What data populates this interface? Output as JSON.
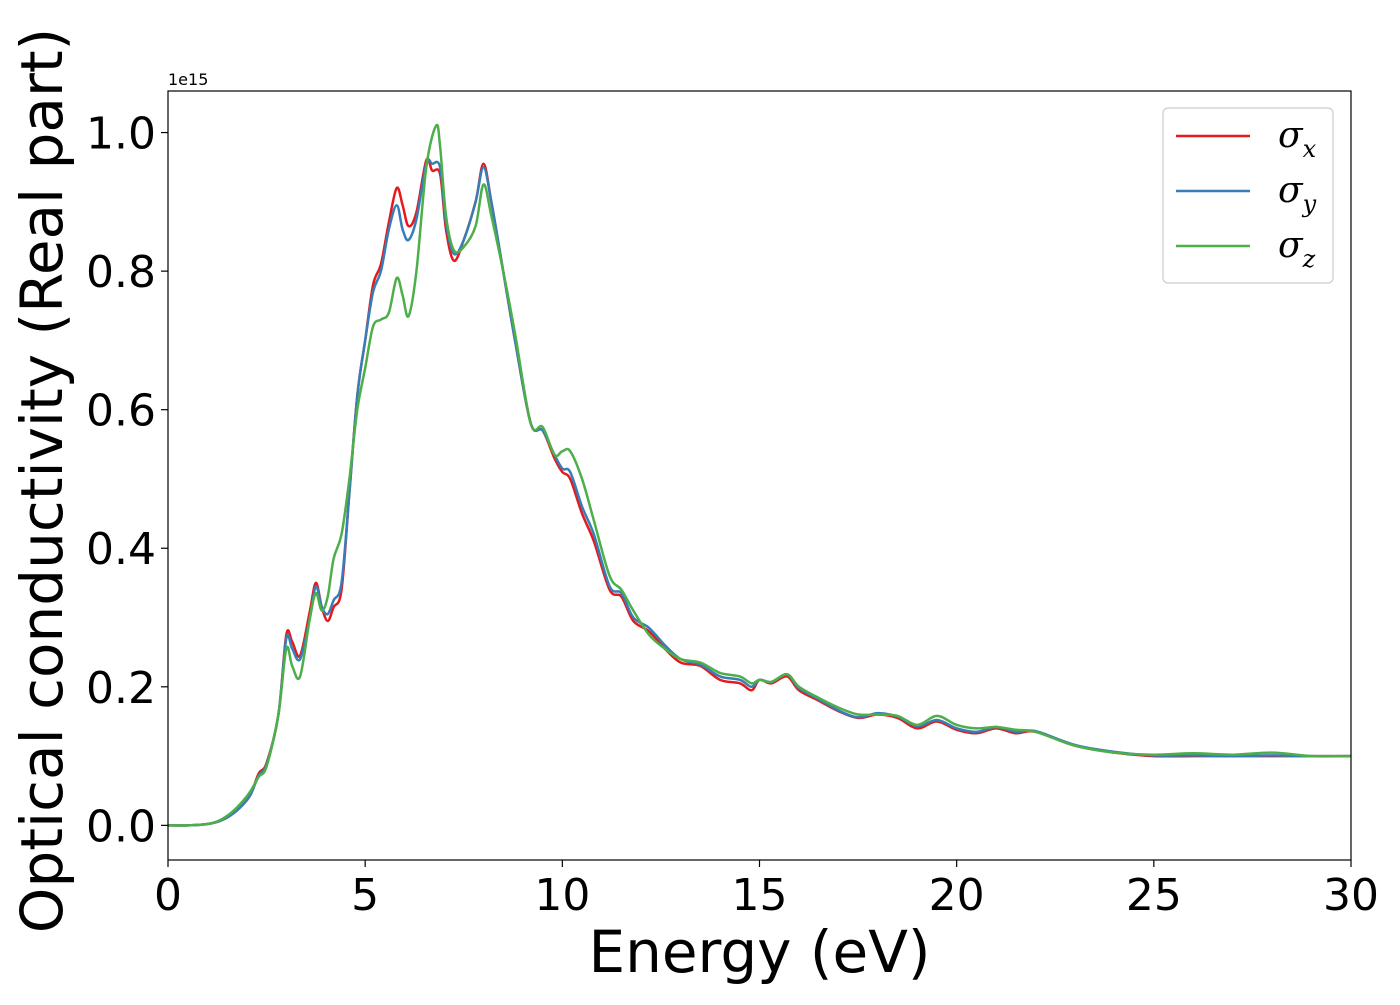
{
  "chart_data": {
    "type": "line",
    "title": "",
    "xlabel": "Energy (eV)",
    "ylabel": "Optical conductivity (Real part)",
    "y_offset_text": "1e15",
    "xlim": [
      0,
      30
    ],
    "ylim": [
      -0.05,
      1.06
    ],
    "xticks": [
      0,
      5,
      10,
      15,
      20,
      25,
      30
    ],
    "xtick_labels": [
      "0",
      "5",
      "10",
      "15",
      "20",
      "25",
      "30"
    ],
    "yticks": [
      0.0,
      0.2,
      0.4,
      0.6,
      0.8,
      1.0
    ],
    "ytick_labels": [
      "0.0",
      "0.2",
      "0.4",
      "0.6",
      "0.8",
      "1.0"
    ],
    "grid": false,
    "legend_position": "top-right",
    "series": [
      {
        "name": "σx",
        "symbol": "σ",
        "subscript": "x",
        "color": "#e41a1c",
        "x": [
          0,
          0.5,
          1.0,
          1.3,
          1.6,
          1.9,
          2.1,
          2.3,
          2.5,
          2.8,
          3.0,
          3.15,
          3.35,
          3.6,
          3.75,
          3.9,
          4.05,
          4.2,
          4.4,
          4.6,
          4.8,
          5.0,
          5.2,
          5.4,
          5.6,
          5.8,
          5.95,
          6.1,
          6.3,
          6.55,
          6.7,
          6.9,
          7.05,
          7.25,
          7.5,
          7.8,
          8.0,
          8.2,
          8.5,
          8.8,
          9.2,
          9.5,
          9.8,
          10.0,
          10.2,
          10.5,
          10.8,
          11.2,
          11.5,
          11.8,
          12.2,
          12.6,
          13.0,
          13.5,
          14.0,
          14.5,
          14.8,
          15.0,
          15.3,
          15.7,
          16.0,
          16.5,
          17.0,
          17.5,
          18.0,
          18.5,
          19.0,
          19.5,
          20.0,
          20.5,
          21.0,
          21.5,
          22.0,
          23.0,
          24.0,
          25.0,
          26.0,
          27.0,
          28.0,
          29.0,
          30.0
        ],
        "y": [
          0.0,
          0.0,
          0.002,
          0.006,
          0.015,
          0.03,
          0.045,
          0.075,
          0.09,
          0.16,
          0.275,
          0.265,
          0.245,
          0.31,
          0.35,
          0.315,
          0.295,
          0.315,
          0.34,
          0.48,
          0.62,
          0.7,
          0.78,
          0.81,
          0.87,
          0.92,
          0.895,
          0.865,
          0.885,
          0.96,
          0.945,
          0.94,
          0.86,
          0.815,
          0.845,
          0.9,
          0.955,
          0.9,
          0.8,
          0.7,
          0.58,
          0.57,
          0.53,
          0.51,
          0.5,
          0.45,
          0.41,
          0.34,
          0.33,
          0.295,
          0.28,
          0.255,
          0.235,
          0.23,
          0.21,
          0.205,
          0.195,
          0.21,
          0.205,
          0.215,
          0.195,
          0.18,
          0.165,
          0.155,
          0.16,
          0.155,
          0.14,
          0.15,
          0.138,
          0.133,
          0.14,
          0.133,
          0.135,
          0.115,
          0.105,
          0.1,
          0.1,
          0.1,
          0.1,
          0.1,
          0.1
        ]
      },
      {
        "name": "σy",
        "symbol": "σ",
        "subscript": "y",
        "color": "#377eb8",
        "x": [
          0,
          0.5,
          1.0,
          1.3,
          1.6,
          1.9,
          2.1,
          2.3,
          2.5,
          2.8,
          3.0,
          3.15,
          3.35,
          3.6,
          3.75,
          3.9,
          4.05,
          4.2,
          4.4,
          4.6,
          4.8,
          5.0,
          5.2,
          5.4,
          5.6,
          5.8,
          5.95,
          6.1,
          6.3,
          6.55,
          6.7,
          6.9,
          7.05,
          7.25,
          7.5,
          7.8,
          8.0,
          8.2,
          8.5,
          8.8,
          9.2,
          9.5,
          9.8,
          10.0,
          10.2,
          10.5,
          10.8,
          11.2,
          11.5,
          11.8,
          12.2,
          12.6,
          13.0,
          13.5,
          14.0,
          14.5,
          14.8,
          15.0,
          15.3,
          15.7,
          16.0,
          16.5,
          17.0,
          17.5,
          18.0,
          18.5,
          19.0,
          19.5,
          20.0,
          20.5,
          21.0,
          21.5,
          22.0,
          23.0,
          24.0,
          25.0,
          26.0,
          27.0,
          28.0,
          29.0,
          30.0
        ],
        "y": [
          0.0,
          0.0,
          0.002,
          0.006,
          0.015,
          0.03,
          0.045,
          0.072,
          0.088,
          0.16,
          0.27,
          0.255,
          0.24,
          0.3,
          0.345,
          0.315,
          0.305,
          0.325,
          0.35,
          0.48,
          0.62,
          0.7,
          0.77,
          0.8,
          0.86,
          0.895,
          0.86,
          0.845,
          0.875,
          0.955,
          0.955,
          0.95,
          0.87,
          0.825,
          0.845,
          0.9,
          0.95,
          0.9,
          0.8,
          0.7,
          0.58,
          0.57,
          0.535,
          0.515,
          0.51,
          0.46,
          0.42,
          0.345,
          0.335,
          0.3,
          0.285,
          0.26,
          0.24,
          0.232,
          0.215,
          0.21,
          0.2,
          0.21,
          0.207,
          0.218,
          0.198,
          0.182,
          0.166,
          0.156,
          0.162,
          0.157,
          0.143,
          0.152,
          0.14,
          0.135,
          0.142,
          0.135,
          0.136,
          0.116,
          0.106,
          0.101,
          0.101,
          0.1,
          0.101,
          0.1,
          0.1
        ]
      },
      {
        "name": "σz",
        "symbol": "σ",
        "subscript": "z",
        "color": "#4daf4a",
        "x": [
          0,
          0.5,
          1.0,
          1.3,
          1.6,
          1.9,
          2.1,
          2.3,
          2.5,
          2.8,
          3.0,
          3.15,
          3.35,
          3.6,
          3.75,
          3.9,
          4.05,
          4.2,
          4.4,
          4.6,
          4.8,
          5.0,
          5.2,
          5.4,
          5.6,
          5.8,
          5.95,
          6.1,
          6.3,
          6.55,
          6.8,
          6.9,
          7.05,
          7.25,
          7.5,
          7.8,
          8.0,
          8.2,
          8.5,
          8.8,
          9.2,
          9.5,
          9.8,
          10.0,
          10.2,
          10.5,
          10.8,
          11.2,
          11.5,
          11.8,
          12.2,
          12.6,
          13.0,
          13.5,
          14.0,
          14.5,
          14.8,
          15.0,
          15.3,
          15.7,
          16.0,
          16.5,
          17.0,
          17.5,
          18.0,
          18.5,
          19.0,
          19.5,
          20.0,
          20.5,
          21.0,
          21.5,
          22.0,
          23.0,
          24.0,
          25.0,
          26.0,
          27.0,
          28.0,
          29.0,
          30.0
        ],
        "y": [
          0.0,
          0.0,
          0.002,
          0.007,
          0.018,
          0.035,
          0.05,
          0.07,
          0.085,
          0.16,
          0.255,
          0.23,
          0.215,
          0.3,
          0.335,
          0.31,
          0.33,
          0.385,
          0.42,
          0.5,
          0.6,
          0.66,
          0.72,
          0.73,
          0.74,
          0.79,
          0.765,
          0.735,
          0.8,
          0.95,
          1.01,
          0.98,
          0.88,
          0.83,
          0.835,
          0.865,
          0.925,
          0.88,
          0.8,
          0.71,
          0.58,
          0.575,
          0.535,
          0.54,
          0.54,
          0.5,
          0.44,
          0.36,
          0.34,
          0.31,
          0.275,
          0.255,
          0.24,
          0.235,
          0.22,
          0.215,
          0.205,
          0.21,
          0.207,
          0.218,
          0.2,
          0.184,
          0.17,
          0.16,
          0.16,
          0.158,
          0.145,
          0.158,
          0.145,
          0.14,
          0.142,
          0.138,
          0.135,
          0.115,
          0.105,
          0.102,
          0.104,
          0.102,
          0.105,
          0.1,
          0.1
        ]
      }
    ]
  }
}
